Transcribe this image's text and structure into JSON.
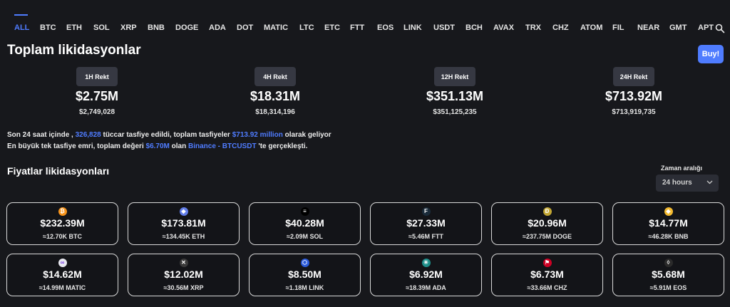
{
  "tabs": [
    "ALL",
    "BTC",
    "ETH",
    "SOL",
    "XRP",
    "BNB",
    "DOGE",
    "ADA",
    "DOT",
    "MATIC",
    "LTC",
    "ETC",
    "FTT",
    "EOS",
    "LINK",
    "USDT",
    "BCH",
    "AVAX",
    "TRX",
    "CHZ",
    "ATOM",
    "FIL",
    "NEAR",
    "GMT",
    "APT"
  ],
  "active_tab": "ALL",
  "header": {
    "title": "Toplam likidasyonlar",
    "buy_label": "Buy!"
  },
  "stats": [
    {
      "label": "1H Rekt",
      "value": "$2.75M",
      "exact": "$2,749,028"
    },
    {
      "label": "4H Rekt",
      "value": "$18.31M",
      "exact": "$18,314,196"
    },
    {
      "label": "12H Rekt",
      "value": "$351.13M",
      "exact": "$351,125,235"
    },
    {
      "label": "24H Rekt",
      "value": "$713.92M",
      "exact": "$713,919,735"
    }
  ],
  "summary": {
    "line1_a": "Son 24 saat içinde ,",
    "traders": "326,828",
    "line1_b": "tüccar tasfiye edildi, toplam tasfiyeler",
    "total": "$713.92 million",
    "line1_c": "olarak geliyor",
    "line2_a": "En büyük tek tasfiye emri, toplam değeri",
    "largest": "$6.70M",
    "line2_b": "olan",
    "market": "Binance - BTCUSDT",
    "line2_c": "'te gerçekleşti."
  },
  "prices_section": {
    "title": "Fiyatlar likidasyonları",
    "range_label": "Zaman aralığı",
    "range_value": "24 hours"
  },
  "cards": [
    {
      "icon": "btc-icon",
      "glyph": "₿",
      "color": "#f7931a",
      "value": "$232.39M",
      "sub": "≈12.70K BTC"
    },
    {
      "icon": "eth-icon",
      "glyph": "◆",
      "color": "#627eea",
      "value": "$173.81M",
      "sub": "≈134.45K ETH"
    },
    {
      "icon": "sol-icon",
      "glyph": "≡",
      "color": "#000000",
      "value": "$40.28M",
      "sub": "≈2.09M SOL"
    },
    {
      "icon": "ftt-icon",
      "glyph": "F",
      "color": "#1a2b3a",
      "value": "$27.33M",
      "sub": "≈5.46M FTT"
    },
    {
      "icon": "doge-icon",
      "glyph": "Ð",
      "color": "#c2a633",
      "value": "$20.96M",
      "sub": "≈237.75M DOGE"
    },
    {
      "icon": "bnb-icon",
      "glyph": "◆",
      "color": "#f3ba2f",
      "value": "$14.77M",
      "sub": "≈46.28K BNB"
    },
    {
      "icon": "matic-icon",
      "glyph": "∞",
      "color": "#e8e8f0",
      "value": "$14.62M",
      "sub": "≈14.99M MATIC"
    },
    {
      "icon": "xrp-icon",
      "glyph": "✕",
      "color": "#3a3a3a",
      "value": "$12.02M",
      "sub": "≈30.56M XRP"
    },
    {
      "icon": "link-icon",
      "glyph": "⬡",
      "color": "#2a5ada",
      "value": "$8.50M",
      "sub": "≈1.18M LINK"
    },
    {
      "icon": "ada-icon",
      "glyph": "✳",
      "color": "#1e8f8a",
      "value": "$6.92M",
      "sub": "≈18.39M ADA"
    },
    {
      "icon": "chz-icon",
      "glyph": "⚑",
      "color": "#cd0124",
      "value": "$6.73M",
      "sub": "≈33.66M CHZ"
    },
    {
      "icon": "eos-icon",
      "glyph": "◊",
      "color": "#2a2a2a",
      "value": "$5.68M",
      "sub": "≈5.91M EOS"
    }
  ]
}
